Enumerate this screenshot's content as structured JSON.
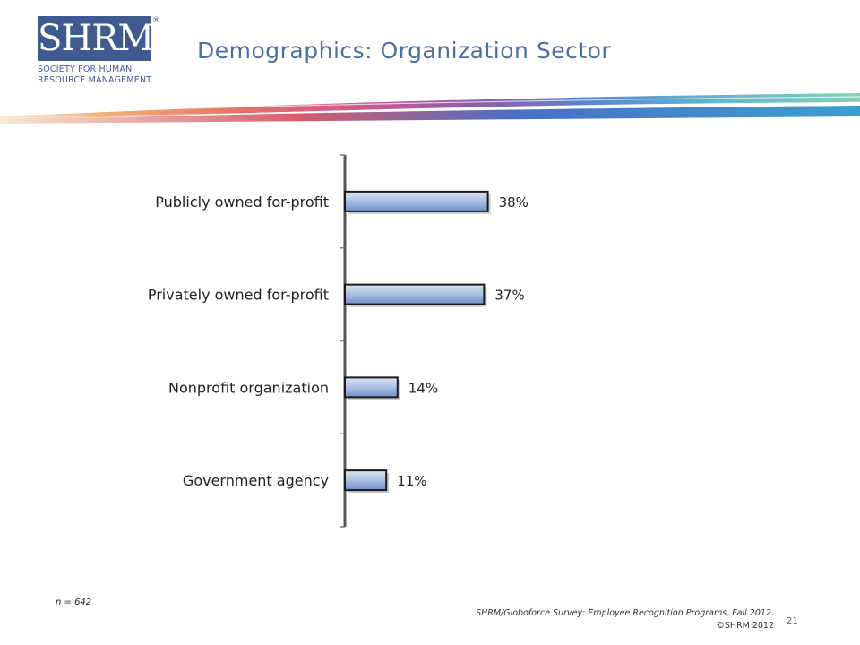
{
  "logo": {
    "mark": "SHRM",
    "registered": "®",
    "line1": "SOCIETY FOR HUMAN",
    "line2": "RESOURCE MANAGEMENT"
  },
  "title": "Demographics: Organization Sector",
  "colors": {
    "title": "#4a6fa5",
    "logo": "#3f5a8e",
    "bar_fill_light": "#c5d6ef",
    "bar_fill_dark": "#6f8fc4",
    "bar_outline": "#1a1a1a"
  },
  "chart_data": {
    "type": "bar",
    "orientation": "horizontal",
    "categories": [
      "Publicly owned for-profit",
      "Privately owned for-profit",
      "Nonprofit organization",
      "Government agency"
    ],
    "values": [
      38,
      37,
      14,
      11
    ],
    "value_labels": [
      "38%",
      "37%",
      "14%",
      "11%"
    ],
    "xlim": [
      0,
      100
    ],
    "grid": false,
    "legend": "none"
  },
  "footer": {
    "n_note": "n = 642",
    "source_line1": "SHRM/Globoforce Survey: Employee Recognition Programs, Fall 2012.",
    "source_line2": "©SHRM 2012",
    "page_number": "21"
  }
}
